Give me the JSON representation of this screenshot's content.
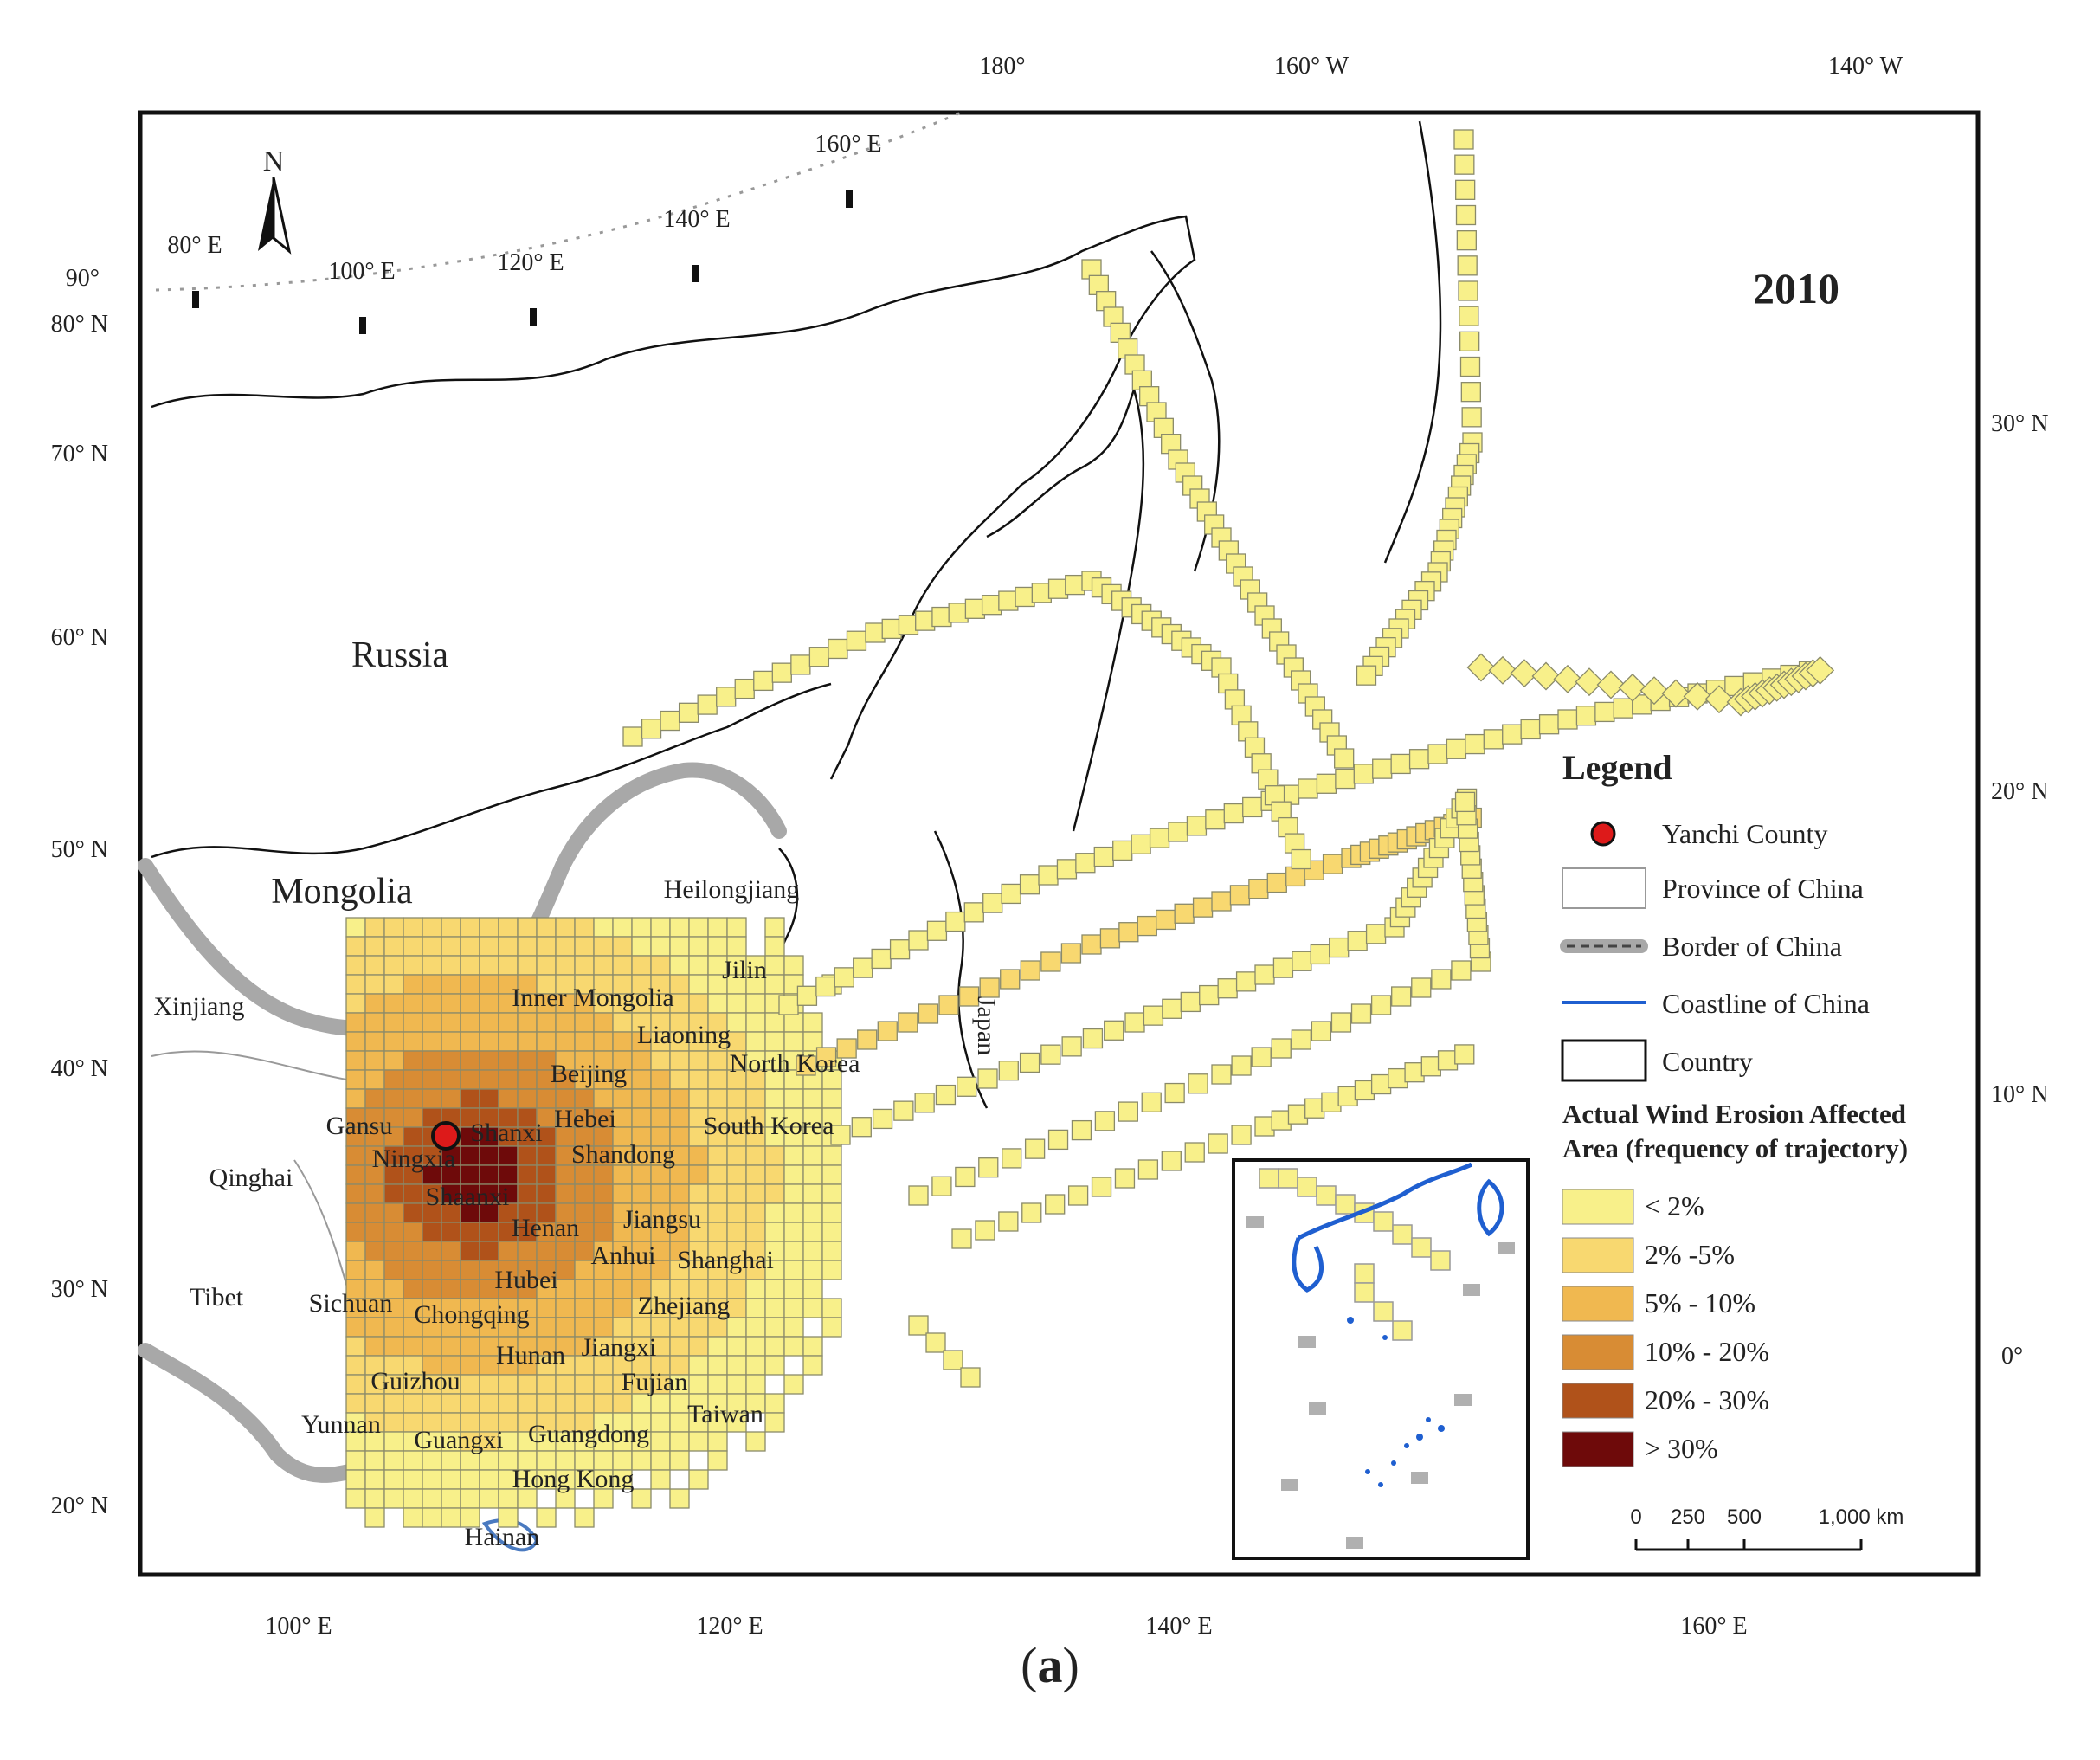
{
  "map": {
    "year": "2010",
    "north_arrow": "N",
    "caption_open": "(",
    "caption_letter": "a",
    "caption_close": ")",
    "countries": [
      "Russia",
      "Mongolia"
    ],
    "provinces": [
      "Xinjiang",
      "Inner Mongolia",
      "Heilongjiang",
      "Jilin",
      "Liaoning",
      "Beijing",
      "Hebei",
      "Shanxi",
      "Gansu",
      "Ningxia",
      "Shandong",
      "Shaanxi",
      "Qinghai",
      "Henan",
      "Jiangsu",
      "Anhui",
      "Shanghai",
      "Hubei",
      "Tibet",
      "Sichuan",
      "Chongqing",
      "Zhejiang",
      "Hunan",
      "Jiangxi",
      "Guizhou",
      "Fujian",
      "Yunnan",
      "Guangxi",
      "Guangdong",
      "Taiwan",
      "Hong Kong",
      "Hainan",
      "North Korea",
      "South Korea",
      "Japan"
    ],
    "bottom_lon": [
      "100° E",
      "120° E",
      "140° E",
      "160° E"
    ],
    "top_lon": [
      "180°",
      "160° W",
      "140° W"
    ],
    "left_lat": [
      "20° N",
      "30° N",
      "40° N",
      "50° N",
      "60° N",
      "70° N",
      "80° N",
      "90°"
    ],
    "right_lat": [
      "0°",
      "10° N",
      "20° N",
      "30° N"
    ],
    "arc_lon": [
      "80° E",
      "100° E",
      "120° E",
      "140° E",
      "160° E"
    ]
  },
  "legend": {
    "title": "Legend",
    "items": [
      "Yanchi County",
      "Province of China",
      "Border of China",
      "Coastline of China",
      "Country"
    ],
    "freq_title_1": "Actual Wind Erosion Affected",
    "freq_title_2": "Area (frequency of trajectory)",
    "classes": [
      {
        "label": "< 2%",
        "color": "#f8f08a"
      },
      {
        "label": "2% -5%",
        "color": "#f8d870"
      },
      {
        "label": "5% - 10%",
        "color": "#f0b850"
      },
      {
        "label": "10% - 20%",
        "color": "#d88c34"
      },
      {
        "label": "20% - 30%",
        "color": "#b0521a"
      },
      {
        "label": "> 30%",
        "color": "#6e0a0a"
      }
    ],
    "scale_labels": [
      "0",
      "250",
      "500",
      "1,000 km"
    ]
  },
  "colors": {
    "yanchi": "#dd1a1a",
    "coastline": "#1f5fd0",
    "border": "#9a9a9a",
    "country": "#111111"
  }
}
